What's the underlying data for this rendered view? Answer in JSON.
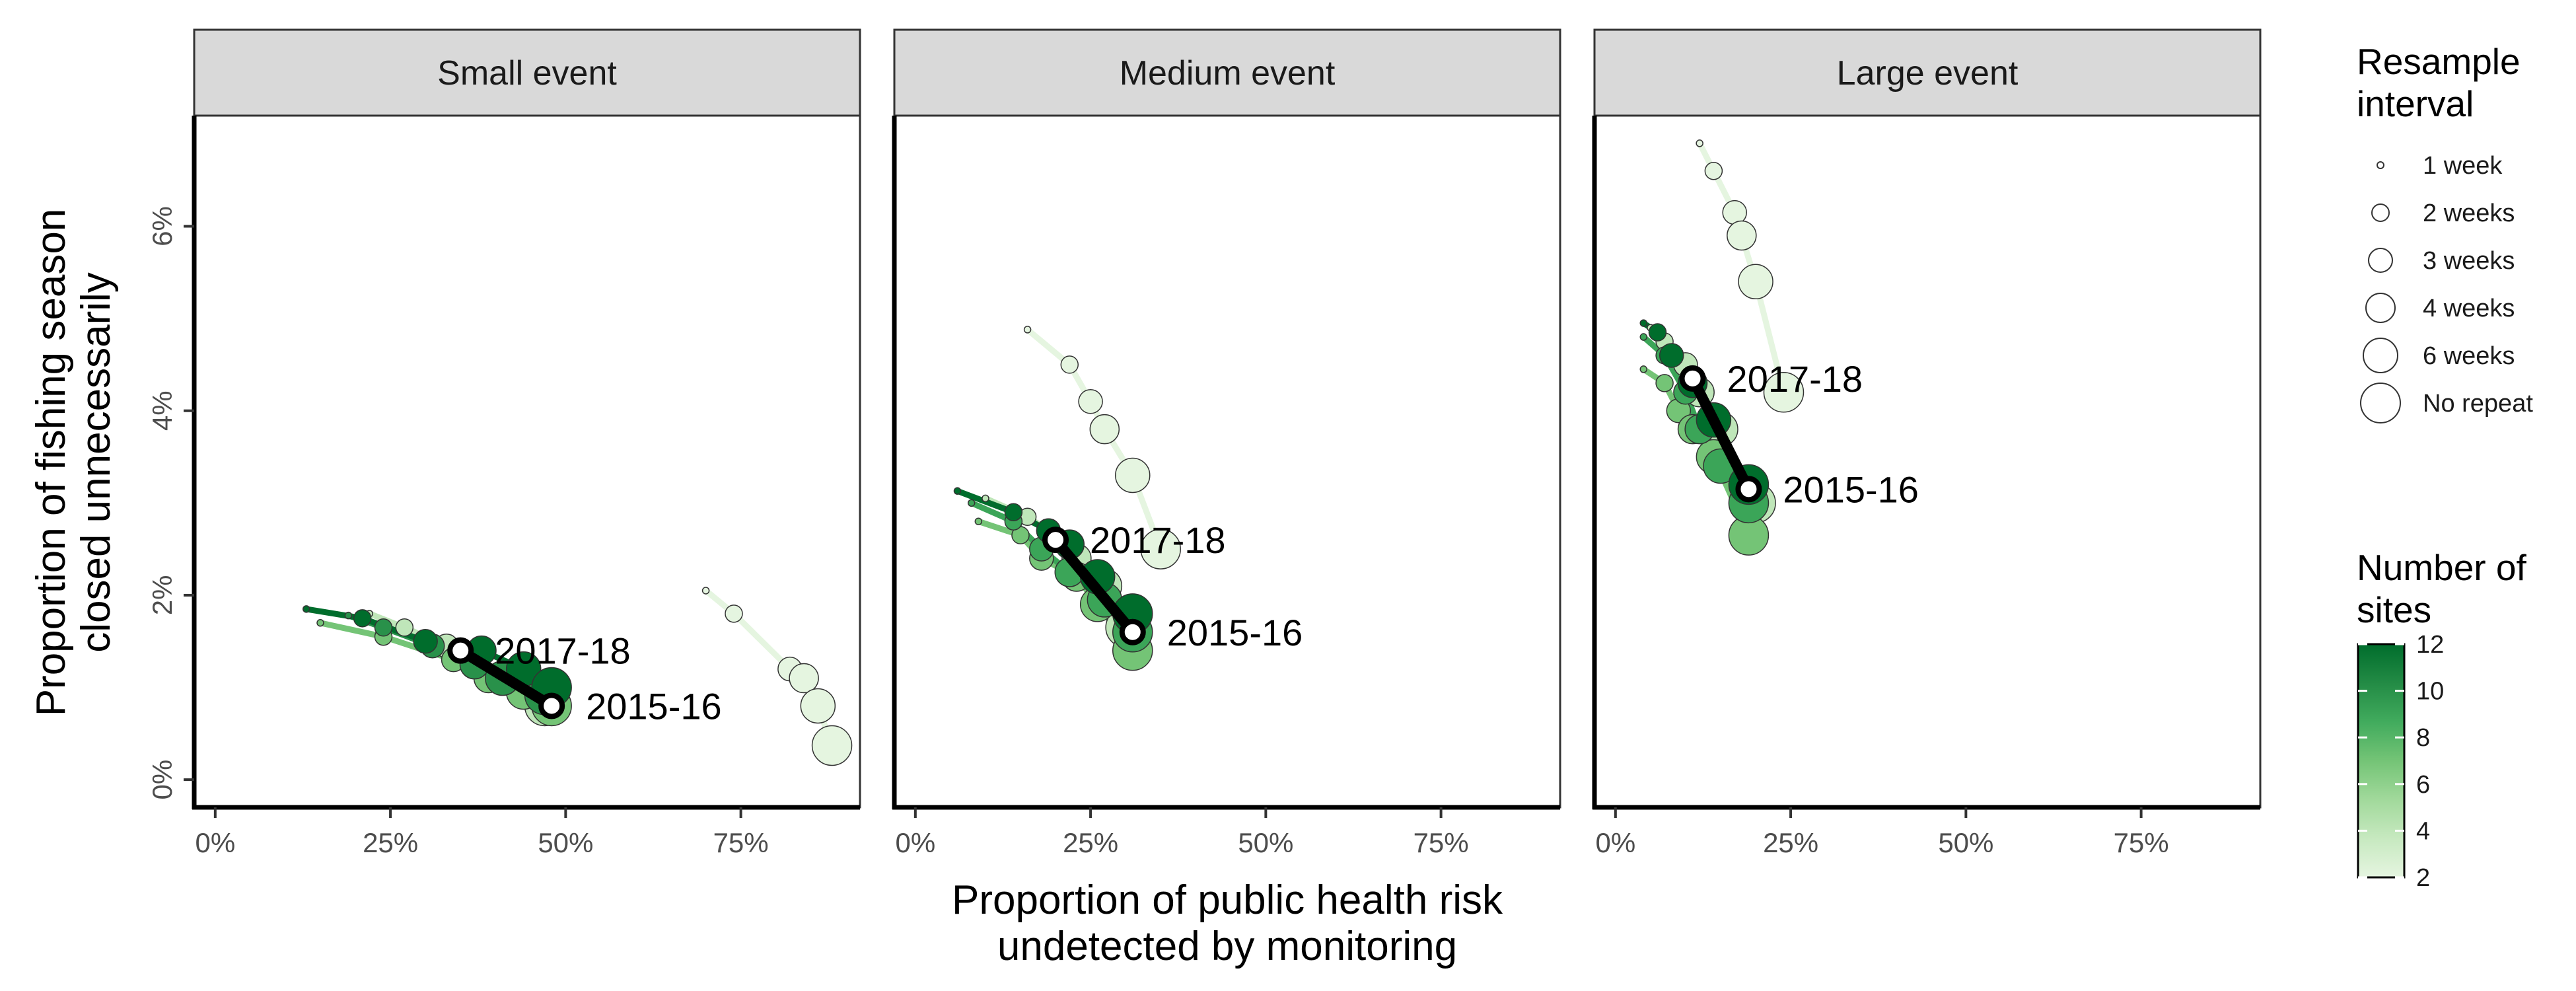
{
  "chart_data": {
    "type": "scatter",
    "x_label": "Proportion of public health risk undetected by monitoring",
    "y_label": "Proportion of fishing season closed unnecessarily",
    "x_ticks": [
      "0%",
      "25%",
      "50%",
      "75%"
    ],
    "x_tick_values": [
      0,
      0.25,
      0.5,
      0.75
    ],
    "y_ticks": [
      "0%",
      "2%",
      "4%",
      "6%"
    ],
    "y_tick_values": [
      0,
      0.02,
      0.04,
      0.06
    ],
    "xlim": [
      -0.03,
      0.92
    ],
    "ylim": [
      -0.003,
      0.072
    ],
    "size_legend": {
      "title": [
        "Resample",
        "interval"
      ],
      "items": [
        "1 week",
        "2 weeks",
        "3 weeks",
        "4 weeks",
        "6 weeks",
        "No repeat"
      ]
    },
    "color_legend": {
      "title": [
        "Number of",
        "sites"
      ],
      "ticks": [
        "2",
        "4",
        "6",
        "8",
        "10",
        "12"
      ],
      "tick_values": [
        2,
        4,
        6,
        8,
        10,
        12
      ],
      "range": [
        2,
        12
      ],
      "colors": [
        "#e5f5e0",
        "#c7e9c0",
        "#a1d99b",
        "#74c476",
        "#41ab5d",
        "#238b45",
        "#006d2c"
      ]
    },
    "panels": [
      {
        "title": "Small event",
        "series": [
          {
            "sites": 2,
            "points": [
              [
                0.7,
                0.0205
              ],
              [
                0.74,
                0.018
              ],
              [
                0.82,
                0.012
              ],
              [
                0.84,
                0.011
              ],
              [
                0.86,
                0.008
              ],
              [
                0.88,
                0.0037
              ]
            ]
          },
          {
            "sites": 12,
            "points": [
              [
                0.13,
                0.0185
              ],
              [
                0.21,
                0.0175
              ],
              [
                0.3,
                0.015
              ],
              [
                0.38,
                0.014
              ],
              [
                0.44,
                0.012
              ],
              [
                0.48,
                0.01
              ]
            ]
          },
          {
            "sites": 10,
            "points": [
              [
                0.19,
                0.0178
              ],
              [
                0.24,
                0.0165
              ],
              [
                0.31,
                0.0145
              ],
              [
                0.37,
                0.0125
              ],
              [
                0.41,
                0.011
              ],
              [
                0.47,
                0.0092
              ]
            ]
          },
          {
            "sites": 7,
            "points": [
              [
                0.15,
                0.017
              ],
              [
                0.24,
                0.0155
              ],
              [
                0.34,
                0.013
              ],
              [
                0.39,
                0.011
              ],
              [
                0.44,
                0.0095
              ],
              [
                0.48,
                0.008
              ]
            ]
          },
          {
            "sites": 4,
            "points": [
              [
                0.22,
                0.018
              ],
              [
                0.27,
                0.0165
              ],
              [
                0.33,
                0.0145
              ],
              [
                0.37,
                0.0125
              ],
              [
                0.42,
                0.011
              ],
              [
                0.47,
                0.008
              ]
            ]
          }
        ],
        "years": [
          {
            "label": "2017-18",
            "x": 0.35,
            "y": 0.014
          },
          {
            "label": "2015-16",
            "x": 0.48,
            "y": 0.008
          }
        ]
      },
      {
        "title": "Medium event",
        "series": [
          {
            "sites": 2,
            "points": [
              [
                0.16,
                0.0488
              ],
              [
                0.22,
                0.045
              ],
              [
                0.25,
                0.041
              ],
              [
                0.27,
                0.038
              ],
              [
                0.31,
                0.033
              ],
              [
                0.35,
                0.025
              ]
            ]
          },
          {
            "sites": 12,
            "points": [
              [
                0.06,
                0.0313
              ],
              [
                0.14,
                0.029
              ],
              [
                0.19,
                0.027
              ],
              [
                0.22,
                0.0255
              ],
              [
                0.26,
                0.022
              ],
              [
                0.31,
                0.018
              ]
            ]
          },
          {
            "sites": 9,
            "points": [
              [
                0.08,
                0.03
              ],
              [
                0.14,
                0.028
              ],
              [
                0.18,
                0.025
              ],
              [
                0.22,
                0.0225
              ],
              [
                0.27,
                0.0195
              ],
              [
                0.31,
                0.016
              ]
            ]
          },
          {
            "sites": 7,
            "points": [
              [
                0.09,
                0.028
              ],
              [
                0.15,
                0.0265
              ],
              [
                0.18,
                0.024
              ],
              [
                0.23,
                0.022
              ],
              [
                0.26,
                0.019
              ],
              [
                0.31,
                0.014
              ]
            ]
          },
          {
            "sites": 4,
            "points": [
              [
                0.1,
                0.0305
              ],
              [
                0.16,
                0.0285
              ],
              [
                0.19,
                0.027
              ],
              [
                0.23,
                0.024
              ],
              [
                0.27,
                0.021
              ],
              [
                0.3,
                0.0165
              ]
            ]
          }
        ],
        "years": [
          {
            "label": "2017-18",
            "x": 0.2,
            "y": 0.026
          },
          {
            "label": "2015-16",
            "x": 0.31,
            "y": 0.016
          }
        ]
      },
      {
        "title": "Large event",
        "series": [
          {
            "sites": 2,
            "points": [
              [
                0.12,
                0.069
              ],
              [
                0.14,
                0.066
              ],
              [
                0.17,
                0.0615
              ],
              [
                0.18,
                0.059
              ],
              [
                0.2,
                0.054
              ],
              [
                0.24,
                0.042
              ]
            ]
          },
          {
            "sites": 12,
            "points": [
              [
                0.04,
                0.0495
              ],
              [
                0.06,
                0.0485
              ],
              [
                0.08,
                0.046
              ],
              [
                0.11,
                0.043
              ],
              [
                0.14,
                0.039
              ],
              [
                0.19,
                0.032
              ]
            ]
          },
          {
            "sites": 9,
            "points": [
              [
                0.04,
                0.048
              ],
              [
                0.07,
                0.046
              ],
              [
                0.1,
                0.042
              ],
              [
                0.12,
                0.038
              ],
              [
                0.15,
                0.034
              ],
              [
                0.19,
                0.03
              ]
            ]
          },
          {
            "sites": 7,
            "points": [
              [
                0.04,
                0.0445
              ],
              [
                0.07,
                0.043
              ],
              [
                0.09,
                0.04
              ],
              [
                0.11,
                0.038
              ],
              [
                0.14,
                0.035
              ],
              [
                0.19,
                0.0265
              ]
            ]
          },
          {
            "sites": 4,
            "points": [
              [
                0.05,
                0.049
              ],
              [
                0.07,
                0.0475
              ],
              [
                0.1,
                0.045
              ],
              [
                0.12,
                0.042
              ],
              [
                0.15,
                0.038
              ],
              [
                0.2,
                0.03
              ]
            ]
          }
        ],
        "years": [
          {
            "label": "2017-18",
            "x": 0.11,
            "y": 0.0435
          },
          {
            "label": "2015-16",
            "x": 0.19,
            "y": 0.0315
          }
        ]
      }
    ]
  }
}
